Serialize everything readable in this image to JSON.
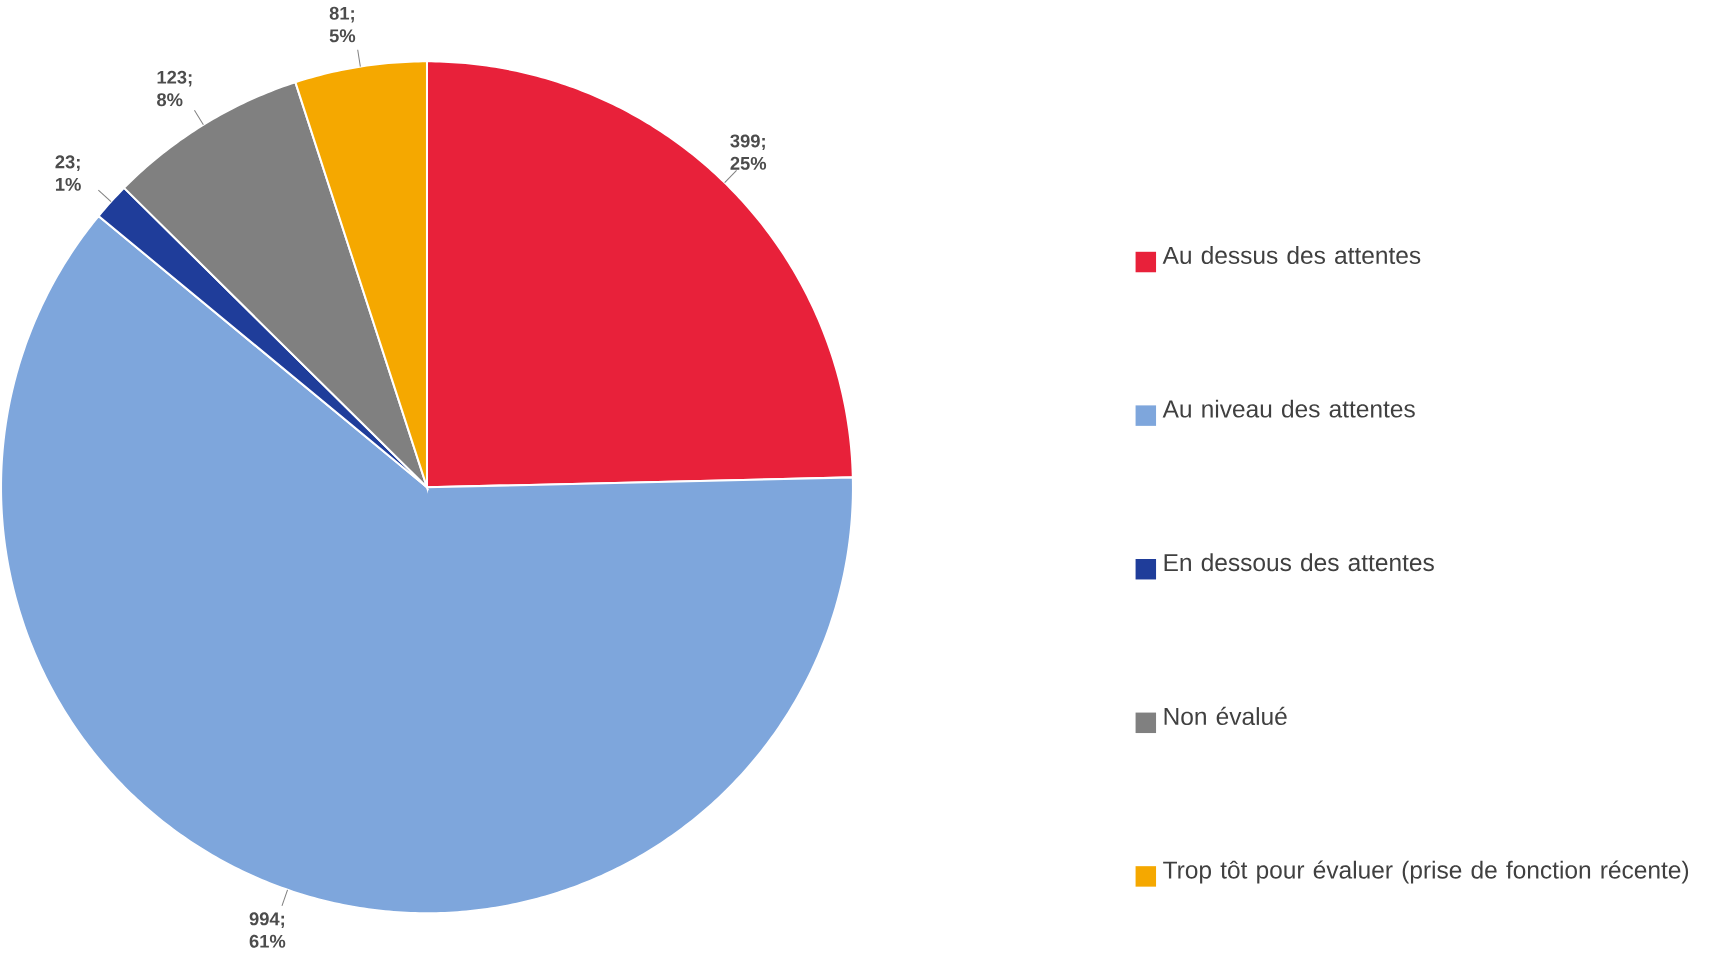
{
  "chart_data": {
    "type": "pie",
    "categories": [
      "Au dessus des attentes",
      "Au niveau des attentes",
      "En dessous des attentes",
      "Non évalué",
      "Trop tôt pour évaluer (prise de fonction récente)"
    ],
    "values": [
      399,
      994,
      23,
      123,
      81
    ],
    "colors": [
      "#e8213a",
      "#7ea6dc",
      "#1f3d9a",
      "#808080",
      "#f5a800"
    ],
    "value_labels": [
      "399; 25%",
      "994; 61%",
      "23; 1%",
      "123; 8%",
      "81; 5%"
    ],
    "legend": "right"
  }
}
